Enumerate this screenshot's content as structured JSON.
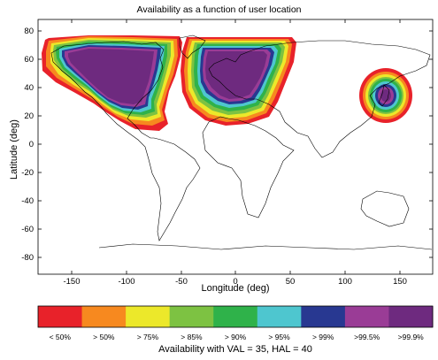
{
  "title": "Availability as a function of user location",
  "xlabel": "Longitude (deg)",
  "ylabel": "Latitude (deg)",
  "caption": "Availability with VAL = 35,  HAL = 40",
  "x_ticks": [
    "-150",
    "-100",
    "-50",
    "0",
    "50",
    "100",
    "150"
  ],
  "y_ticks": [
    "80",
    "60",
    "40",
    "20",
    "0",
    "-20",
    "-40",
    "-60",
    "-80"
  ],
  "colorbar": [
    {
      "label": "< 50%",
      "color": "#e8222a"
    },
    {
      "label": "> 50%",
      "color": "#f7891f"
    },
    {
      "label": "> 75%",
      "color": "#ece82a"
    },
    {
      "label": "> 85%",
      "color": "#7dc242"
    },
    {
      "label": "> 90%",
      "color": "#2fb24a"
    },
    {
      "label": "> 95%",
      "color": "#4ec6cf"
    },
    {
      "label": "> 99%",
      "color": "#283891"
    },
    {
      "label": ">99.5%",
      "color": "#9a3c96"
    },
    {
      "label": ">99.9%",
      "color": "#6e2a7f"
    }
  ],
  "map": {
    "lon_range": [
      -180,
      180
    ],
    "lat_range": [
      -90,
      90
    ],
    "coverage_regions": [
      "North America",
      "Europe",
      "Japan"
    ]
  }
}
